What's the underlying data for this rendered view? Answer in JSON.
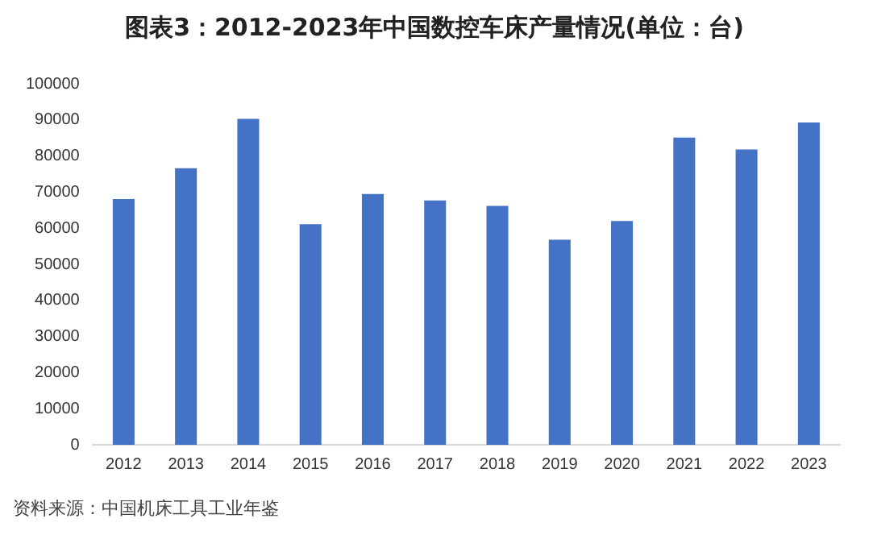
{
  "chart_data": {
    "type": "bar",
    "title": "图表3：2012-2023年中国数控车床产量情况(单位：台)",
    "categories": [
      "2012",
      "2013",
      "2014",
      "2015",
      "2016",
      "2017",
      "2018",
      "2019",
      "2020",
      "2021",
      "2022",
      "2023"
    ],
    "values": [
      68100,
      76600,
      90300,
      61100,
      69500,
      67700,
      66200,
      56800,
      62000,
      85100,
      81800,
      89300
    ],
    "color": "#4472c4",
    "ylim": [
      0,
      100000
    ],
    "yticks": [
      0,
      10000,
      20000,
      30000,
      40000,
      50000,
      60000,
      70000,
      80000,
      90000,
      100000
    ],
    "grid": false,
    "legend": false,
    "annotations": [
      "资料来源：中国机床工具工业年鉴"
    ]
  }
}
